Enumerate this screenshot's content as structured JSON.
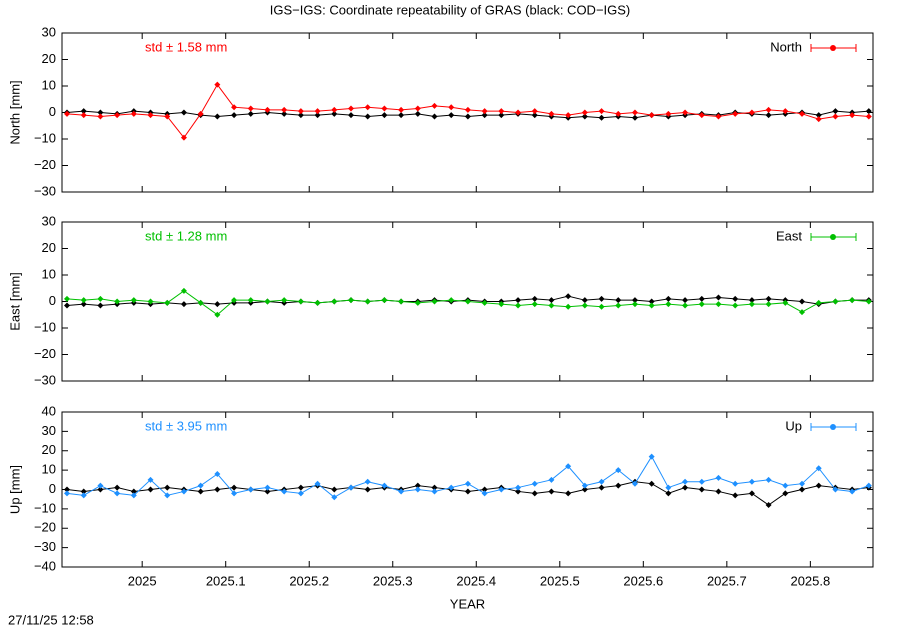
{
  "title": "IGS−IGS: Coordinate repeatability of GRAS (black: COD−IGS)",
  "timestamp": "27/11/25 12:58",
  "chart_data": [
    {
      "type": "line",
      "ylabel": "North [mm]",
      "annotation": "std ± 1.58 mm",
      "annotation_color": "#ff0000",
      "legend": "upper right",
      "show_xtick_labels": false,
      "xlim": [
        2024.904,
        2025.875
      ],
      "xticks": [
        2025,
        2025.1,
        2025.2,
        2025.3,
        2025.4,
        2025.5,
        2025.6,
        2025.7,
        2025.8
      ],
      "ylim": [
        -30,
        30
      ],
      "yticks": [
        {
          "value": -30,
          "label": "−30"
        },
        {
          "value": -20,
          "label": "−20"
        },
        {
          "value": -10,
          "label": "−10"
        },
        0,
        10,
        20,
        30
      ],
      "x": [
        2024.91,
        2024.93,
        2024.95,
        2024.97,
        2024.99,
        2025.01,
        2025.03,
        2025.05,
        2025.07,
        2025.09,
        2025.11,
        2025.13,
        2025.15,
        2025.17,
        2025.19,
        2025.21,
        2025.23,
        2025.25,
        2025.27,
        2025.29,
        2025.31,
        2025.33,
        2025.35,
        2025.37,
        2025.39,
        2025.41,
        2025.43,
        2025.45,
        2025.47,
        2025.49,
        2025.51,
        2025.53,
        2025.55,
        2025.57,
        2025.59,
        2025.61,
        2025.63,
        2025.65,
        2025.67,
        2025.69,
        2025.71,
        2025.73,
        2025.75,
        2025.77,
        2025.79,
        2025.81,
        2025.83,
        2025.85,
        2025.87
      ],
      "series": [
        {
          "color": "#000000",
          "values": [
            0,
            0.5,
            0,
            -0.5,
            0.5,
            0,
            -0.5,
            0,
            -1,
            -1.5,
            -1,
            -0.5,
            0,
            -0.5,
            -1,
            -1,
            -0.5,
            -1,
            -1.5,
            -1,
            -1,
            -0.5,
            -1.5,
            -1,
            -1.5,
            -1,
            -1,
            -0.5,
            -1,
            -1.5,
            -2,
            -1.5,
            -2,
            -1.5,
            -2,
            -1,
            -1.5,
            -1,
            -0.5,
            -1,
            0,
            -0.5,
            -1,
            -0.5,
            0,
            -1,
            0.5,
            0,
            0.5
          ]
        },
        {
          "name": "North",
          "color": "#ff0000",
          "values": [
            -0.5,
            -1,
            -1.5,
            -1,
            -0.5,
            -1,
            -1.5,
            -9.5,
            -0.5,
            10.5,
            2,
            1.5,
            1,
            1,
            0.5,
            0.5,
            1,
            1.5,
            2,
            1.5,
            1,
            1.5,
            2.5,
            2,
            1,
            0.5,
            0.5,
            0,
            0.5,
            -0.5,
            -1,
            0,
            0.5,
            -0.5,
            0,
            -1,
            -0.5,
            0,
            -1,
            -1.5,
            -0.5,
            0,
            1,
            0.5,
            -0.5,
            -2.5,
            -1.5,
            -1,
            -1.5
          ]
        }
      ]
    },
    {
      "type": "line",
      "ylabel": "East [mm]",
      "annotation": "std ± 1.28 mm",
      "annotation_color": "#00c000",
      "legend": "upper right",
      "show_xtick_labels": false,
      "xlim": [
        2024.904,
        2025.875
      ],
      "xticks": [
        2025,
        2025.1,
        2025.2,
        2025.3,
        2025.4,
        2025.5,
        2025.6,
        2025.7,
        2025.8
      ],
      "ylim": [
        -30,
        30
      ],
      "yticks": [
        {
          "value": -30,
          "label": "−30"
        },
        {
          "value": -20,
          "label": "−20"
        },
        {
          "value": -10,
          "label": "−10"
        },
        0,
        10,
        20,
        30
      ],
      "x": [
        2024.91,
        2024.93,
        2024.95,
        2024.97,
        2024.99,
        2025.01,
        2025.03,
        2025.05,
        2025.07,
        2025.09,
        2025.11,
        2025.13,
        2025.15,
        2025.17,
        2025.19,
        2025.21,
        2025.23,
        2025.25,
        2025.27,
        2025.29,
        2025.31,
        2025.33,
        2025.35,
        2025.37,
        2025.39,
        2025.41,
        2025.43,
        2025.45,
        2025.47,
        2025.49,
        2025.51,
        2025.53,
        2025.55,
        2025.57,
        2025.59,
        2025.61,
        2025.63,
        2025.65,
        2025.67,
        2025.69,
        2025.71,
        2025.73,
        2025.75,
        2025.77,
        2025.79,
        2025.81,
        2025.83,
        2025.85,
        2025.87
      ],
      "series": [
        {
          "color": "#000000",
          "values": [
            -1.5,
            -1,
            -1.5,
            -1,
            -0.5,
            -1,
            -0.5,
            -1,
            -0.5,
            -1,
            -0.5,
            -0.5,
            0,
            -0.5,
            0,
            -0.5,
            0,
            0.5,
            0,
            0.5,
            0,
            0,
            0.5,
            0,
            0.5,
            0,
            0,
            0.5,
            1,
            0.5,
            2,
            0.5,
            1,
            0.5,
            0.5,
            0,
            1,
            0.5,
            1,
            1.5,
            1,
            0.5,
            1,
            0.5,
            0,
            -1,
            0,
            0.5,
            0.5
          ]
        },
        {
          "name": "East",
          "color": "#00c000",
          "values": [
            1,
            0.5,
            1,
            0,
            0.5,
            0,
            -0.5,
            4,
            -0.5,
            -5,
            0.5,
            0.5,
            0,
            0.5,
            0,
            -0.5,
            0,
            0.5,
            0,
            0.5,
            0,
            -0.5,
            0,
            0.5,
            0,
            -0.5,
            -1,
            -1.5,
            -1,
            -1.5,
            -2,
            -1.5,
            -2,
            -1.5,
            -1,
            -1.5,
            -1,
            -1.5,
            -1,
            -1,
            -1.5,
            -1,
            -1,
            -0.5,
            -4,
            -0.5,
            0,
            0.5,
            0
          ]
        }
      ]
    },
    {
      "type": "line",
      "ylabel": "Up [mm]",
      "xlabel": "YEAR",
      "annotation": "std ± 3.95 mm",
      "annotation_color": "#1e90ff",
      "legend": "upper right",
      "show_xtick_labels": true,
      "xlim": [
        2024.904,
        2025.875
      ],
      "xticks": [
        2025,
        2025.1,
        2025.2,
        2025.3,
        2025.4,
        2025.5,
        2025.6,
        2025.7,
        2025.8
      ],
      "ylim": [
        -40,
        40
      ],
      "yticks": [
        {
          "value": -40,
          "label": "−40"
        },
        {
          "value": -30,
          "label": "−30"
        },
        {
          "value": -20,
          "label": "−20"
        },
        {
          "value": -10,
          "label": "−10"
        },
        0,
        10,
        20,
        30,
        40
      ],
      "x": [
        2024.91,
        2024.93,
        2024.95,
        2024.97,
        2024.99,
        2025.01,
        2025.03,
        2025.05,
        2025.07,
        2025.09,
        2025.11,
        2025.13,
        2025.15,
        2025.17,
        2025.19,
        2025.21,
        2025.23,
        2025.25,
        2025.27,
        2025.29,
        2025.31,
        2025.33,
        2025.35,
        2025.37,
        2025.39,
        2025.41,
        2025.43,
        2025.45,
        2025.47,
        2025.49,
        2025.51,
        2025.53,
        2025.55,
        2025.57,
        2025.59,
        2025.61,
        2025.63,
        2025.65,
        2025.67,
        2025.69,
        2025.71,
        2025.73,
        2025.75,
        2025.77,
        2025.79,
        2025.81,
        2025.83,
        2025.85,
        2025.87
      ],
      "series": [
        {
          "color": "#000000",
          "values": [
            0,
            -1,
            0,
            1,
            -1,
            0,
            1,
            0,
            -1,
            0,
            1,
            0,
            -1,
            0,
            1,
            2,
            0,
            1,
            0,
            1,
            0,
            2,
            1,
            0,
            -1,
            0,
            1,
            -1,
            -2,
            -1,
            -2,
            0,
            1,
            2,
            4,
            3,
            -2,
            1,
            0,
            -1,
            -3,
            -2,
            -8,
            -2,
            0,
            2,
            1,
            0,
            1
          ]
        },
        {
          "name": "Up",
          "color": "#1e90ff",
          "values": [
            -2,
            -3,
            2,
            -2,
            -3,
            5,
            -3,
            -1,
            2,
            8,
            -2,
            0,
            1,
            -1,
            -2,
            3,
            -4,
            1,
            4,
            2,
            -1,
            0,
            -1,
            1,
            3,
            -2,
            0,
            1,
            3,
            5,
            12,
            2,
            4,
            10,
            3,
            17,
            1,
            4,
            4,
            6,
            3,
            4,
            5,
            2,
            3,
            11,
            0,
            -1,
            2
          ]
        }
      ]
    }
  ]
}
